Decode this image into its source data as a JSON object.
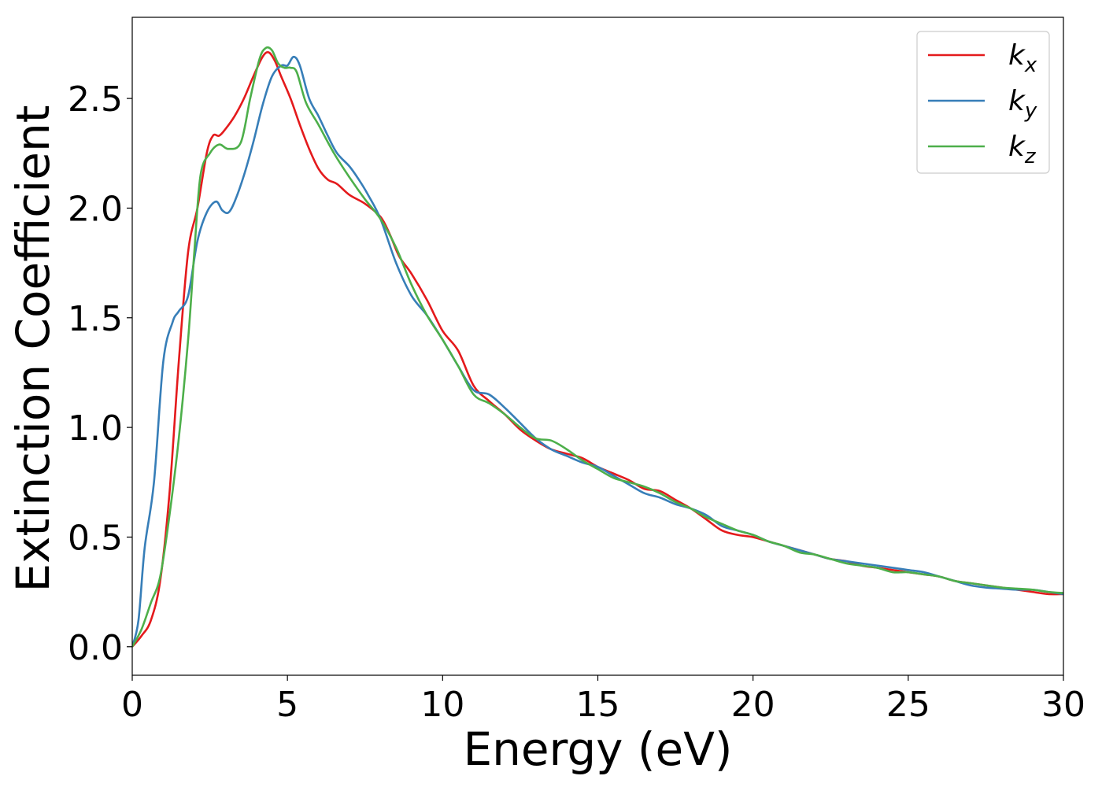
{
  "chart_data": {
    "type": "line",
    "xlabel": "Energy (eV)",
    "ylabel": "Extinction Coefficient",
    "xlim": [
      0,
      30
    ],
    "ylim": [
      -0.13,
      2.87
    ],
    "xticks": [
      0,
      5,
      10,
      15,
      20,
      25,
      30
    ],
    "xtick_labels": [
      "0",
      "5",
      "10",
      "15",
      "20",
      "25",
      "30"
    ],
    "yticks": [
      0.0,
      0.5,
      1.0,
      1.5,
      2.0,
      2.5
    ],
    "ytick_labels": [
      "0.0",
      "0.5",
      "1.0",
      "1.5",
      "2.0",
      "2.5"
    ],
    "grid": false,
    "legend_position": "top-right",
    "series": [
      {
        "name": "k_x",
        "label_base": "k",
        "label_sub": "x",
        "color": "#e41a1c",
        "points": [
          [
            0,
            0
          ],
          [
            0.3,
            0.05
          ],
          [
            0.6,
            0.12
          ],
          [
            0.9,
            0.3
          ],
          [
            1.2,
            0.7
          ],
          [
            1.5,
            1.3
          ],
          [
            1.8,
            1.8
          ],
          [
            2.1,
            2.0
          ],
          [
            2.4,
            2.25
          ],
          [
            2.6,
            2.33
          ],
          [
            2.8,
            2.33
          ],
          [
            3.0,
            2.36
          ],
          [
            3.3,
            2.42
          ],
          [
            3.6,
            2.5
          ],
          [
            3.9,
            2.6
          ],
          [
            4.2,
            2.69
          ],
          [
            4.4,
            2.71
          ],
          [
            4.6,
            2.67
          ],
          [
            4.8,
            2.6
          ],
          [
            5.1,
            2.5
          ],
          [
            5.4,
            2.38
          ],
          [
            5.7,
            2.27
          ],
          [
            6.0,
            2.18
          ],
          [
            6.3,
            2.13
          ],
          [
            6.6,
            2.11
          ],
          [
            7.0,
            2.06
          ],
          [
            7.5,
            2.02
          ],
          [
            8.0,
            1.96
          ],
          [
            8.3,
            1.88
          ],
          [
            8.6,
            1.78
          ],
          [
            9.0,
            1.7
          ],
          [
            9.5,
            1.58
          ],
          [
            10.0,
            1.44
          ],
          [
            10.5,
            1.35
          ],
          [
            11.0,
            1.19
          ],
          [
            11.5,
            1.12
          ],
          [
            12.0,
            1.06
          ],
          [
            12.5,
            0.99
          ],
          [
            13.0,
            0.94
          ],
          [
            13.5,
            0.9
          ],
          [
            14.0,
            0.88
          ],
          [
            14.5,
            0.86
          ],
          [
            15.0,
            0.82
          ],
          [
            15.5,
            0.79
          ],
          [
            16.0,
            0.76
          ],
          [
            16.5,
            0.72
          ],
          [
            17.0,
            0.71
          ],
          [
            17.5,
            0.67
          ],
          [
            18.0,
            0.63
          ],
          [
            18.5,
            0.58
          ],
          [
            19.0,
            0.53
          ],
          [
            19.5,
            0.51
          ],
          [
            20.0,
            0.5
          ],
          [
            20.5,
            0.48
          ],
          [
            21.0,
            0.46
          ],
          [
            21.5,
            0.44
          ],
          [
            22.0,
            0.42
          ],
          [
            22.5,
            0.4
          ],
          [
            23.0,
            0.39
          ],
          [
            23.5,
            0.37
          ],
          [
            24.0,
            0.36
          ],
          [
            24.5,
            0.35
          ],
          [
            25.0,
            0.34
          ],
          [
            25.5,
            0.33
          ],
          [
            26.0,
            0.32
          ],
          [
            26.5,
            0.3
          ],
          [
            27.0,
            0.29
          ],
          [
            27.5,
            0.28
          ],
          [
            28.0,
            0.27
          ],
          [
            28.5,
            0.26
          ],
          [
            29.0,
            0.25
          ],
          [
            29.5,
            0.24
          ],
          [
            30.0,
            0.24
          ]
        ]
      },
      {
        "name": "k_y",
        "label_base": "k",
        "label_sub": "y",
        "color": "#377eb8",
        "points": [
          [
            0,
            0
          ],
          [
            0.2,
            0.12
          ],
          [
            0.4,
            0.45
          ],
          [
            0.7,
            0.75
          ],
          [
            1.0,
            1.3
          ],
          [
            1.3,
            1.48
          ],
          [
            1.5,
            1.53
          ],
          [
            1.8,
            1.6
          ],
          [
            2.1,
            1.85
          ],
          [
            2.4,
            1.98
          ],
          [
            2.7,
            2.03
          ],
          [
            2.9,
            1.99
          ],
          [
            3.1,
            1.98
          ],
          [
            3.3,
            2.03
          ],
          [
            3.6,
            2.15
          ],
          [
            3.9,
            2.3
          ],
          [
            4.2,
            2.47
          ],
          [
            4.5,
            2.6
          ],
          [
            4.8,
            2.65
          ],
          [
            5.0,
            2.65
          ],
          [
            5.2,
            2.69
          ],
          [
            5.4,
            2.65
          ],
          [
            5.7,
            2.5
          ],
          [
            6.0,
            2.42
          ],
          [
            6.3,
            2.33
          ],
          [
            6.6,
            2.25
          ],
          [
            7.0,
            2.19
          ],
          [
            7.3,
            2.13
          ],
          [
            7.6,
            2.06
          ],
          [
            8.0,
            1.95
          ],
          [
            8.5,
            1.75
          ],
          [
            9.0,
            1.6
          ],
          [
            9.5,
            1.51
          ],
          [
            10.0,
            1.4
          ],
          [
            10.5,
            1.28
          ],
          [
            11.0,
            1.17
          ],
          [
            11.5,
            1.15
          ],
          [
            12.0,
            1.09
          ],
          [
            12.5,
            1.02
          ],
          [
            13.0,
            0.95
          ],
          [
            13.5,
            0.9
          ],
          [
            14.0,
            0.87
          ],
          [
            14.5,
            0.84
          ],
          [
            15.0,
            0.82
          ],
          [
            15.5,
            0.78
          ],
          [
            16.0,
            0.74
          ],
          [
            16.5,
            0.7
          ],
          [
            17.0,
            0.68
          ],
          [
            17.5,
            0.65
          ],
          [
            18.0,
            0.63
          ],
          [
            18.5,
            0.6
          ],
          [
            19.0,
            0.55
          ],
          [
            19.5,
            0.53
          ],
          [
            20.0,
            0.51
          ],
          [
            20.5,
            0.48
          ],
          [
            21.0,
            0.46
          ],
          [
            21.5,
            0.44
          ],
          [
            22.0,
            0.42
          ],
          [
            22.5,
            0.4
          ],
          [
            23.0,
            0.39
          ],
          [
            23.5,
            0.38
          ],
          [
            24.0,
            0.37
          ],
          [
            24.5,
            0.36
          ],
          [
            25.0,
            0.35
          ],
          [
            25.5,
            0.34
          ],
          [
            26.0,
            0.32
          ],
          [
            26.5,
            0.3
          ],
          [
            27.0,
            0.28
          ],
          [
            27.5,
            0.27
          ],
          [
            28.0,
            0.265
          ],
          [
            28.5,
            0.26
          ],
          [
            29.0,
            0.26
          ],
          [
            29.5,
            0.25
          ],
          [
            30.0,
            0.24
          ]
        ]
      },
      {
        "name": "k_z",
        "label_base": "k",
        "label_sub": "z",
        "color": "#4daf4a",
        "points": [
          [
            0,
            0
          ],
          [
            0.3,
            0.08
          ],
          [
            0.6,
            0.2
          ],
          [
            0.9,
            0.32
          ],
          [
            1.2,
            0.6
          ],
          [
            1.5,
            0.95
          ],
          [
            1.8,
            1.4
          ],
          [
            2.0,
            1.8
          ],
          [
            2.2,
            2.15
          ],
          [
            2.5,
            2.25
          ],
          [
            2.8,
            2.29
          ],
          [
            3.1,
            2.27
          ],
          [
            3.5,
            2.3
          ],
          [
            3.8,
            2.5
          ],
          [
            4.1,
            2.68
          ],
          [
            4.3,
            2.73
          ],
          [
            4.5,
            2.72
          ],
          [
            4.7,
            2.66
          ],
          [
            4.9,
            2.64
          ],
          [
            5.1,
            2.64
          ],
          [
            5.3,
            2.62
          ],
          [
            5.6,
            2.48
          ],
          [
            6.0,
            2.38
          ],
          [
            6.5,
            2.25
          ],
          [
            7.0,
            2.14
          ],
          [
            7.5,
            2.04
          ],
          [
            8.0,
            1.95
          ],
          [
            8.5,
            1.82
          ],
          [
            9.0,
            1.65
          ],
          [
            9.5,
            1.51
          ],
          [
            10.0,
            1.4
          ],
          [
            10.5,
            1.28
          ],
          [
            11.0,
            1.15
          ],
          [
            11.5,
            1.11
          ],
          [
            12.0,
            1.06
          ],
          [
            12.5,
            1.0
          ],
          [
            13.0,
            0.95
          ],
          [
            13.5,
            0.94
          ],
          [
            14.0,
            0.9
          ],
          [
            14.5,
            0.85
          ],
          [
            15.0,
            0.81
          ],
          [
            15.5,
            0.77
          ],
          [
            16.0,
            0.75
          ],
          [
            16.5,
            0.73
          ],
          [
            17.0,
            0.7
          ],
          [
            17.5,
            0.66
          ],
          [
            18.0,
            0.63
          ],
          [
            18.5,
            0.59
          ],
          [
            19.0,
            0.56
          ],
          [
            19.5,
            0.53
          ],
          [
            20.0,
            0.51
          ],
          [
            20.5,
            0.48
          ],
          [
            21.0,
            0.46
          ],
          [
            21.5,
            0.43
          ],
          [
            22.0,
            0.42
          ],
          [
            22.5,
            0.4
          ],
          [
            23.0,
            0.38
          ],
          [
            23.5,
            0.37
          ],
          [
            24.0,
            0.36
          ],
          [
            24.5,
            0.34
          ],
          [
            25.0,
            0.34
          ],
          [
            25.5,
            0.33
          ],
          [
            26.0,
            0.32
          ],
          [
            26.5,
            0.3
          ],
          [
            27.0,
            0.29
          ],
          [
            27.5,
            0.28
          ],
          [
            28.0,
            0.27
          ],
          [
            28.5,
            0.265
          ],
          [
            29.0,
            0.26
          ],
          [
            29.5,
            0.25
          ],
          [
            30.0,
            0.245
          ]
        ]
      }
    ]
  }
}
